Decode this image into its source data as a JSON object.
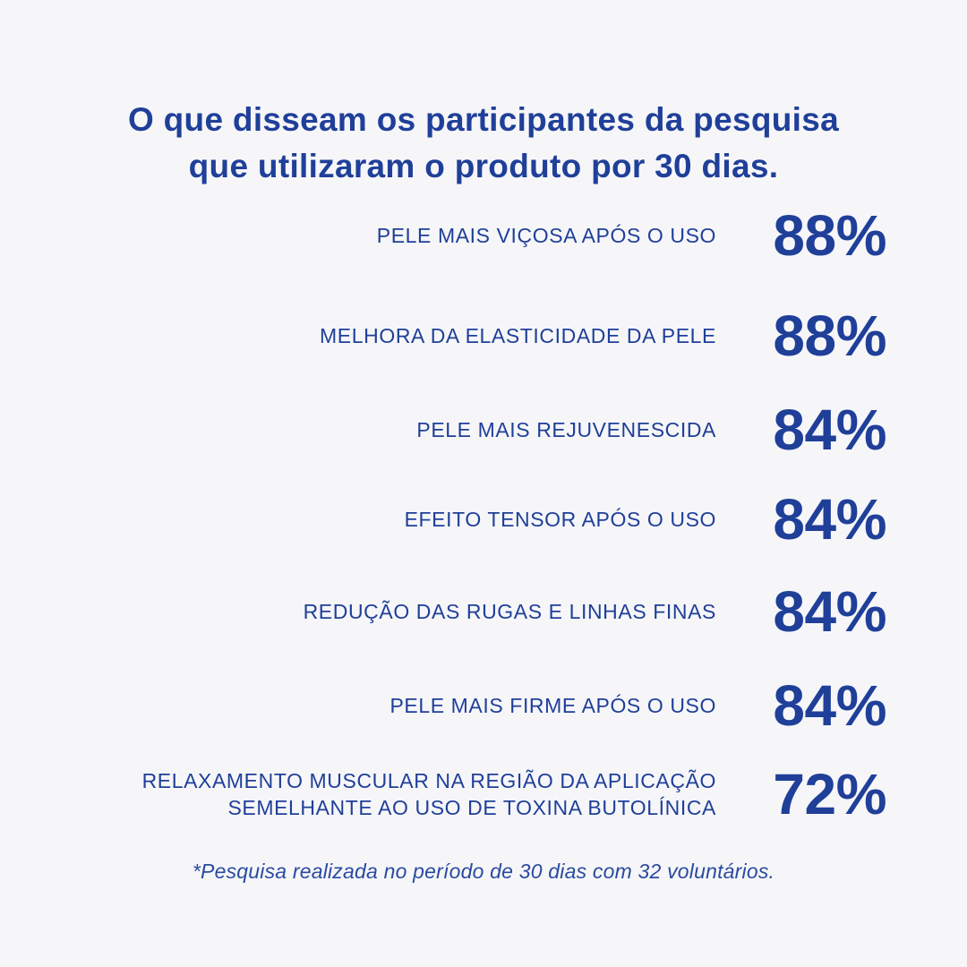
{
  "headline": {
    "line1": "O que disseam os participantes da pesquisa",
    "line2": "que utilizaram o produto por 30 dias."
  },
  "results": [
    {
      "label_lines": [
        "PELE MAIS VIÇOSA APÓS O USO"
      ],
      "value": "88%"
    },
    {
      "label_lines": [
        "MELHORA DA ELASTICIDADE DA PELE"
      ],
      "value": "88%"
    },
    {
      "label_lines": [
        "PELE MAIS REJUVENESCIDA"
      ],
      "value": "84%"
    },
    {
      "label_lines": [
        "EFEITO TENSOR APÓS O USO"
      ],
      "value": "84%"
    },
    {
      "label_lines": [
        "REDUÇÃO DAS RUGAS E LINHAS FINAS"
      ],
      "value": "84%"
    },
    {
      "label_lines": [
        "PELE MAIS FIRME APÓS O USO"
      ],
      "value": "84%"
    },
    {
      "label_lines": [
        "RELAXAMENTO MUSCULAR NA REGIÃO DA APLICAÇÃO",
        "SEMELHANTE AO USO DE TOXINA BUTOLÍNICA"
      ],
      "value": "72%"
    }
  ],
  "footnote": "*Pesquisa realizada no período de 30 dias com 32 voluntários.",
  "colors": {
    "background": "#f6f6f9",
    "text": "#1f3f99"
  }
}
